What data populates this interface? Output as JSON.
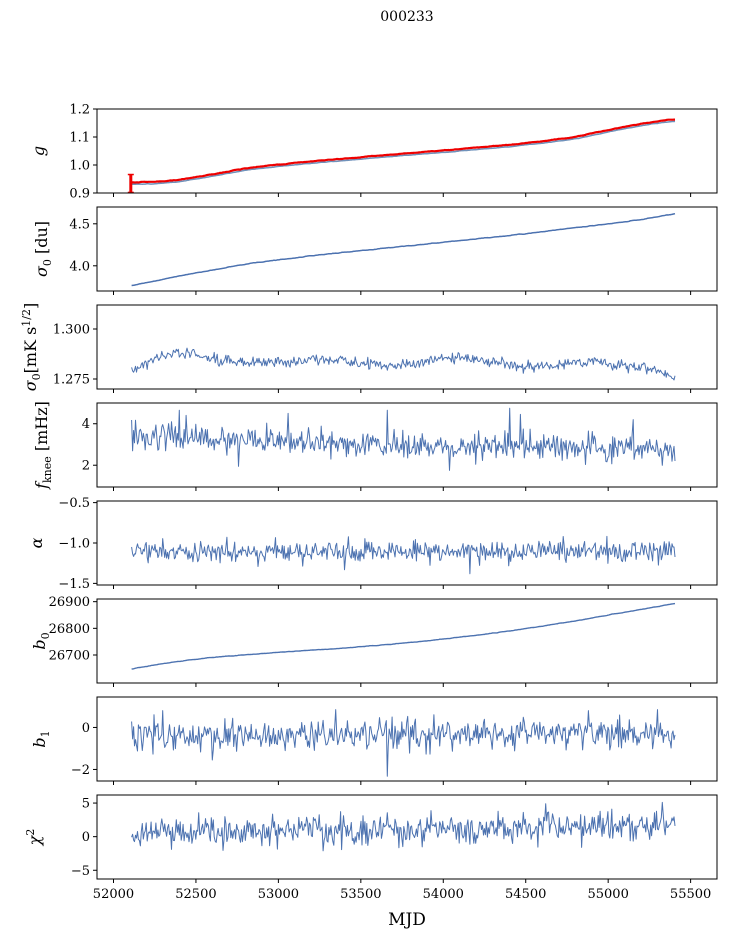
{
  "title": "000233",
  "xlabel": "MJD",
  "xlim": [
    51900,
    55660
  ],
  "data_x_range": [
    52110,
    55405
  ],
  "n_points": 560,
  "x_ticks": [
    {
      "v": 52000,
      "label": "52000"
    },
    {
      "v": 52500,
      "label": "52500"
    },
    {
      "v": 53000,
      "label": "53000"
    },
    {
      "v": 53500,
      "label": "53500"
    },
    {
      "v": 54000,
      "label": "54000"
    },
    {
      "v": 54500,
      "label": "54500"
    },
    {
      "v": 55000,
      "label": "55000"
    },
    {
      "v": 55500,
      "label": "55500"
    }
  ],
  "colors": {
    "line_blue": "#4c72b0",
    "line_red": "#ee0000",
    "line_underlay": "#6f92bb",
    "axis": "#000000"
  },
  "chart_data": [
    {
      "type": "line",
      "name": "g",
      "ylabel_x": 44,
      "ylabel_parts": [
        {
          "t": "g",
          "italic": true
        }
      ],
      "ylim": [
        0.9,
        1.2
      ],
      "yticks": [
        {
          "v": 0.9,
          "label": "0.9"
        },
        {
          "v": 1.0,
          "label": "1.0"
        },
        {
          "v": 1.1,
          "label": "1.1"
        },
        {
          "v": 1.2,
          "label": "1.2"
        }
      ],
      "series": [
        {
          "color": "#6f92bb",
          "width": 1.5,
          "seed": 101,
          "noise": 0.0009,
          "smooth": true,
          "offset": -0.007,
          "trend": [
            [
              52110,
              0.938
            ],
            [
              52250,
              0.94
            ],
            [
              52400,
              0.947
            ],
            [
              52600,
              0.967
            ],
            [
              52800,
              0.988
            ],
            [
              53000,
              1.002
            ],
            [
              53200,
              1.013
            ],
            [
              53400,
              1.023
            ],
            [
              53600,
              1.033
            ],
            [
              53800,
              1.043
            ],
            [
              54000,
              1.052
            ],
            [
              54200,
              1.062
            ],
            [
              54400,
              1.072
            ],
            [
              54600,
              1.085
            ],
            [
              54800,
              1.1
            ],
            [
              55000,
              1.125
            ],
            [
              55150,
              1.142
            ],
            [
              55250,
              1.152
            ],
            [
              55350,
              1.16
            ],
            [
              55405,
              1.163
            ]
          ]
        },
        {
          "color": "#ee0000",
          "width": 2.2,
          "seed": 102,
          "noise": 0.0012,
          "smooth": true,
          "trend": [
            [
              52110,
              0.938
            ],
            [
              52250,
              0.94
            ],
            [
              52400,
              0.947
            ],
            [
              52600,
              0.967
            ],
            [
              52800,
              0.988
            ],
            [
              53000,
              1.002
            ],
            [
              53200,
              1.013
            ],
            [
              53400,
              1.023
            ],
            [
              53600,
              1.033
            ],
            [
              53800,
              1.043
            ],
            [
              54000,
              1.052
            ],
            [
              54200,
              1.062
            ],
            [
              54400,
              1.072
            ],
            [
              54600,
              1.085
            ],
            [
              54800,
              1.1
            ],
            [
              55000,
              1.125
            ],
            [
              55150,
              1.142
            ],
            [
              55250,
              1.152
            ],
            [
              55350,
              1.16
            ],
            [
              55405,
              1.163
            ]
          ],
          "errorbar": {
            "x": 52105,
            "lo": 0.902,
            "hi": 0.966
          }
        }
      ]
    },
    {
      "type": "line",
      "name": "sigma0-du",
      "ylabel_x": 47,
      "ylabel_parts": [
        {
          "t": "σ",
          "italic": true
        },
        {
          "t": "0",
          "sub": true
        },
        {
          "t": " [du]"
        }
      ],
      "ylim": [
        3.7,
        4.7
      ],
      "yticks": [
        {
          "v": 4.0,
          "label": "4.0"
        },
        {
          "v": 4.5,
          "label": "4.5"
        }
      ],
      "series": [
        {
          "color": "#4c72b0",
          "width": 1.5,
          "seed": 201,
          "noise": 0.004,
          "smooth": true,
          "trend": [
            [
              52110,
              3.765
            ],
            [
              52250,
              3.82
            ],
            [
              52400,
              3.88
            ],
            [
              52600,
              3.95
            ],
            [
              52800,
              4.02
            ],
            [
              53000,
              4.07
            ],
            [
              53200,
              4.12
            ],
            [
              53500,
              4.18
            ],
            [
              53800,
              4.24
            ],
            [
              54100,
              4.3
            ],
            [
              54400,
              4.36
            ],
            [
              54700,
              4.43
            ],
            [
              55000,
              4.5
            ],
            [
              55200,
              4.55
            ],
            [
              55405,
              4.62
            ]
          ]
        }
      ]
    },
    {
      "type": "line",
      "name": "sigma0-mK",
      "ylabel_x": 36,
      "ylabel_parts": [
        {
          "t": "σ",
          "italic": true
        },
        {
          "t": "0",
          "sub": true
        },
        {
          "t": "[mK s"
        },
        {
          "t": "1/2",
          "sup": true
        },
        {
          "t": "]"
        }
      ],
      "ylim": [
        1.27,
        1.312
      ],
      "yticks": [
        {
          "v": 1.275,
          "label": "1.275"
        },
        {
          "v": 1.3,
          "label": "1.300"
        }
      ],
      "series": [
        {
          "color": "#4c72b0",
          "width": 1,
          "seed": 301,
          "noise": 0.0013,
          "trend": [
            [
              52110,
              1.279
            ],
            [
              52200,
              1.283
            ],
            [
              52300,
              1.287
            ],
            [
              52450,
              1.288
            ],
            [
              52600,
              1.285
            ],
            [
              52750,
              1.284
            ],
            [
              52900,
              1.2835
            ],
            [
              53100,
              1.284
            ],
            [
              53300,
              1.285
            ],
            [
              53450,
              1.284
            ],
            [
              53600,
              1.2815
            ],
            [
              53750,
              1.282
            ],
            [
              53900,
              1.284
            ],
            [
              54050,
              1.286
            ],
            [
              54200,
              1.285
            ],
            [
              54350,
              1.283
            ],
            [
              54500,
              1.281
            ],
            [
              54650,
              1.282
            ],
            [
              54800,
              1.284
            ],
            [
              54950,
              1.2835
            ],
            [
              55100,
              1.281
            ],
            [
              55200,
              1.2805
            ],
            [
              55300,
              1.279
            ],
            [
              55405,
              1.2755
            ]
          ]
        }
      ]
    },
    {
      "type": "line",
      "name": "fknee",
      "ylabel_x": 47,
      "ylabel_parts": [
        {
          "t": "f",
          "italic": true
        },
        {
          "t": "knee",
          "sub": true
        },
        {
          "t": " [mHz]"
        }
      ],
      "ylim": [
        0.95,
        5.0
      ],
      "yticks": [
        {
          "v": 2,
          "label": "2"
        },
        {
          "v": 4,
          "label": "4"
        }
      ],
      "series": [
        {
          "color": "#4c72b0",
          "width": 1,
          "seed": 401,
          "noise": 0.33,
          "trend": [
            [
              52110,
              3.5
            ],
            [
              52400,
              3.35
            ],
            [
              52700,
              3.25
            ],
            [
              53000,
              3.15
            ],
            [
              53300,
              3.05
            ],
            [
              53600,
              2.95
            ],
            [
              54000,
              2.9
            ],
            [
              54400,
              2.9
            ],
            [
              54800,
              2.85
            ],
            [
              55100,
              2.8
            ],
            [
              55405,
              2.7
            ]
          ],
          "spikes": [
            [
              52400,
              4.65
            ],
            [
              52440,
              4.4
            ],
            [
              52760,
              1.95
            ],
            [
              53060,
              4.5
            ],
            [
              53660,
              4.65
            ],
            [
              54040,
              1.75
            ],
            [
              54400,
              4.75
            ],
            [
              54470,
              4.45
            ],
            [
              55150,
              4.2
            ]
          ]
        }
      ]
    },
    {
      "type": "line",
      "name": "alpha",
      "ylabel_x": 42,
      "ylabel_parts": [
        {
          "t": "α",
          "italic": true
        }
      ],
      "ylim": [
        -1.52,
        -0.48
      ],
      "yticks": [
        {
          "v": -0.5,
          "label": "−0.5"
        },
        {
          "v": -1.0,
          "label": "−1.0"
        },
        {
          "v": -1.5,
          "label": "−1.5"
        }
      ],
      "series": [
        {
          "color": "#4c72b0",
          "width": 1,
          "seed": 501,
          "noise": 0.07,
          "trend": [
            [
              52110,
              -1.1
            ],
            [
              53000,
              -1.11
            ],
            [
              54000,
              -1.1
            ],
            [
              55405,
              -1.1
            ]
          ],
          "spikes": [
            [
              52690,
              -0.93
            ],
            [
              53400,
              -1.33
            ],
            [
              54160,
              -1.38
            ],
            [
              54730,
              -0.92
            ]
          ]
        }
      ]
    },
    {
      "type": "line",
      "name": "b0",
      "ylabel_x": 45,
      "ylabel_parts": [
        {
          "t": "b",
          "italic": true
        },
        {
          "t": "0",
          "sub": true
        }
      ],
      "ylim": [
        26595,
        26910
      ],
      "yticks": [
        {
          "v": 26700,
          "label": "26700"
        },
        {
          "v": 26800,
          "label": "26800"
        },
        {
          "v": 26900,
          "label": "26900"
        }
      ],
      "series": [
        {
          "color": "#4c72b0",
          "width": 1.4,
          "seed": 601,
          "noise": 1.0,
          "smooth": true,
          "trend": [
            [
              52110,
              26648
            ],
            [
              52250,
              26663
            ],
            [
              52400,
              26677
            ],
            [
              52600,
              26691
            ],
            [
              52800,
              26701
            ],
            [
              53000,
              26710
            ],
            [
              53200,
              26718
            ],
            [
              53400,
              26726
            ],
            [
              53600,
              26736
            ],
            [
              53800,
              26747
            ],
            [
              54000,
              26760
            ],
            [
              54200,
              26774
            ],
            [
              54400,
              26790
            ],
            [
              54600,
              26808
            ],
            [
              54800,
              26828
            ],
            [
              55000,
              26850
            ],
            [
              55200,
              26871
            ],
            [
              55405,
              26893
            ]
          ]
        }
      ]
    },
    {
      "type": "line",
      "name": "b1",
      "ylabel_x": 45,
      "ylabel_parts": [
        {
          "t": "b",
          "italic": true
        },
        {
          "t": "1",
          "sub": true
        }
      ],
      "ylim": [
        -2.55,
        1.45
      ],
      "yticks": [
        {
          "v": 0,
          "label": "0"
        },
        {
          "v": -2,
          "label": "−2"
        }
      ],
      "series": [
        {
          "color": "#4c72b0",
          "width": 1,
          "seed": 701,
          "noise": 0.36,
          "trend": [
            [
              52110,
              -0.3
            ],
            [
              52600,
              -0.42
            ],
            [
              53000,
              -0.38
            ],
            [
              53500,
              -0.35
            ],
            [
              54000,
              -0.33
            ],
            [
              54500,
              -0.3
            ],
            [
              55000,
              -0.3
            ],
            [
              55405,
              -0.28
            ]
          ],
          "spikes": [
            [
              52300,
              0.8
            ],
            [
              52600,
              -1.55
            ],
            [
              53350,
              0.85
            ],
            [
              53660,
              -2.32
            ],
            [
              54880,
              0.8
            ],
            [
              55300,
              0.85
            ]
          ]
        }
      ]
    },
    {
      "type": "line",
      "name": "chi2",
      "ylabel_x": 40,
      "ylabel_parts": [
        {
          "t": "χ",
          "italic": true
        },
        {
          "t": "2",
          "sup": true
        }
      ],
      "ylim": [
        -6.3,
        6.2
      ],
      "yticks": [
        {
          "v": 5,
          "label": "5"
        },
        {
          "v": 0,
          "label": "0"
        },
        {
          "v": -5,
          "label": "−5"
        }
      ],
      "series": [
        {
          "color": "#4c72b0",
          "width": 1,
          "seed": 801,
          "noise": 1.1,
          "trend": [
            [
              52110,
              0.55
            ],
            [
              52600,
              0.8
            ],
            [
              53200,
              0.9
            ],
            [
              53800,
              1.0
            ],
            [
              54300,
              1.1
            ],
            [
              54700,
              1.4
            ],
            [
              55000,
              1.6
            ],
            [
              55250,
              1.9
            ],
            [
              55405,
              2.1
            ]
          ],
          "spikes": [
            [
              52350,
              -1.9
            ],
            [
              53270,
              -2.1
            ],
            [
              54620,
              4.9
            ],
            [
              54840,
              -1.6
            ],
            [
              55330,
              5.1
            ]
          ]
        }
      ]
    }
  ]
}
